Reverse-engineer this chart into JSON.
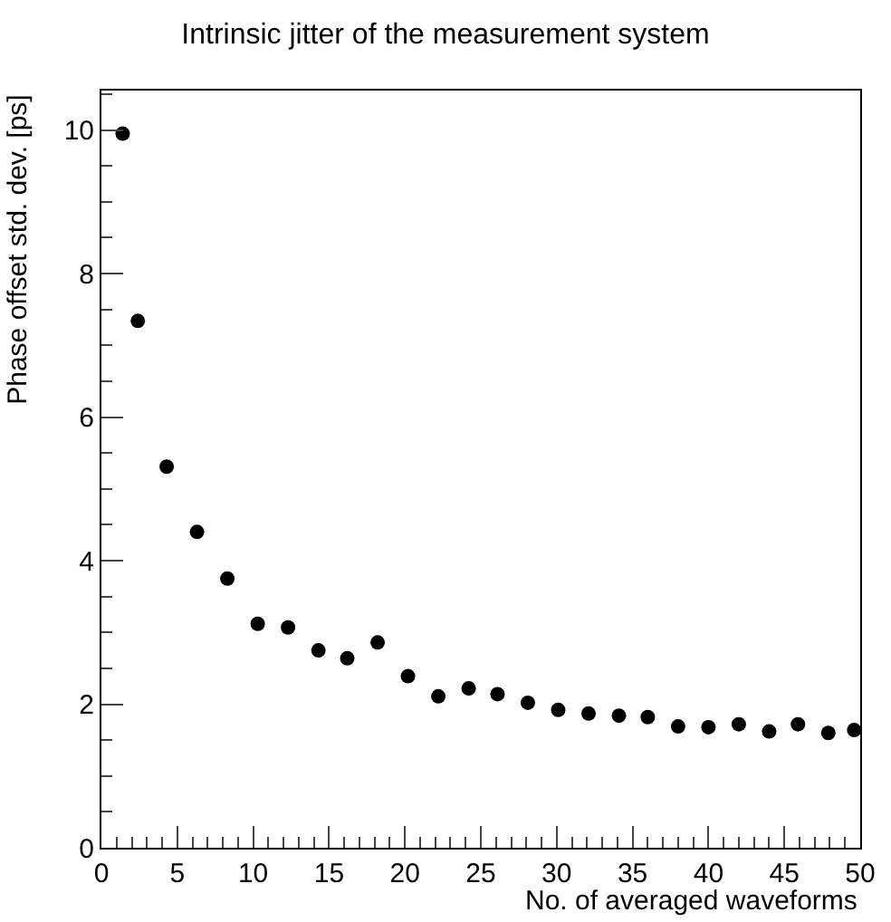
{
  "chart_data": {
    "type": "scatter",
    "title": "Intrinsic jitter of the measurement system",
    "xlabel": "No. of averaged waveforms",
    "ylabel": "Phase offset std. dev. [ps]",
    "x": [
      1.4,
      2.4,
      4.3,
      6.3,
      8.3,
      10.3,
      12.3,
      14.3,
      16.2,
      18.2,
      20.2,
      22.2,
      24.2,
      26.1,
      28.1,
      30.1,
      32.1,
      34.1,
      36.0,
      38.0,
      40.0,
      42.0,
      44.0,
      45.9,
      47.9,
      49.6
    ],
    "series": [
      {
        "color": "#000000",
        "values": [
          9.95,
          7.34,
          5.31,
          4.4,
          3.75,
          3.12,
          3.07,
          2.75,
          2.64,
          2.86,
          2.39,
          2.11,
          2.22,
          2.14,
          2.02,
          1.92,
          1.87,
          1.84,
          1.82,
          1.69,
          1.68,
          1.72,
          1.62,
          1.72,
          1.6,
          1.64
        ]
      }
    ],
    "xlim": [
      0,
      50
    ],
    "xticks": [
      0,
      5,
      10,
      15,
      20,
      25,
      30,
      35,
      40,
      45,
      50
    ],
    "ylim": [
      0,
      10.55
    ],
    "yticks": [
      0,
      2,
      4,
      6,
      8,
      10
    ],
    "marker": "circle",
    "legend": false
  }
}
